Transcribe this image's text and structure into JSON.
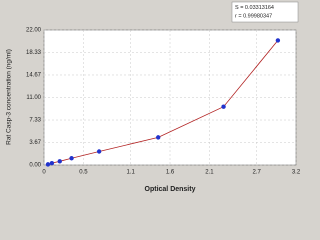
{
  "chart_data": {
    "type": "scatter",
    "xlabel": "Optical Density",
    "ylabel": "Rat Casp-3 concentration (ng/ml)",
    "annotations": [
      "S = 0.03313164",
      "r = 0.99980347"
    ],
    "series": [
      {
        "color": "#2233cc",
        "curve_color": "#b22222",
        "x": [
          0.05,
          0.1,
          0.2,
          0.35,
          0.7,
          1.45,
          2.28,
          2.97
        ],
        "values": [
          0.1,
          0.3,
          0.6,
          1.1,
          2.2,
          4.5,
          9.5,
          20.3
        ]
      }
    ],
    "xlim": [
      0,
      3.2
    ],
    "xticks": [
      0,
      0.5,
      1.1,
      1.6,
      2.1,
      2.7,
      3.2
    ],
    "ylim": [
      0,
      22
    ],
    "yticks": [
      {
        "value": 0,
        "label": "0.00"
      },
      {
        "value": 3.67,
        "label": "3.67"
      },
      {
        "value": 7.33,
        "label": "7.33"
      },
      {
        "value": 11,
        "label": "11.00"
      },
      {
        "value": 14.67,
        "label": "14.67"
      },
      {
        "value": 18.33,
        "label": "18.33"
      },
      {
        "value": 22,
        "label": "22.00"
      }
    ],
    "grid": true
  }
}
